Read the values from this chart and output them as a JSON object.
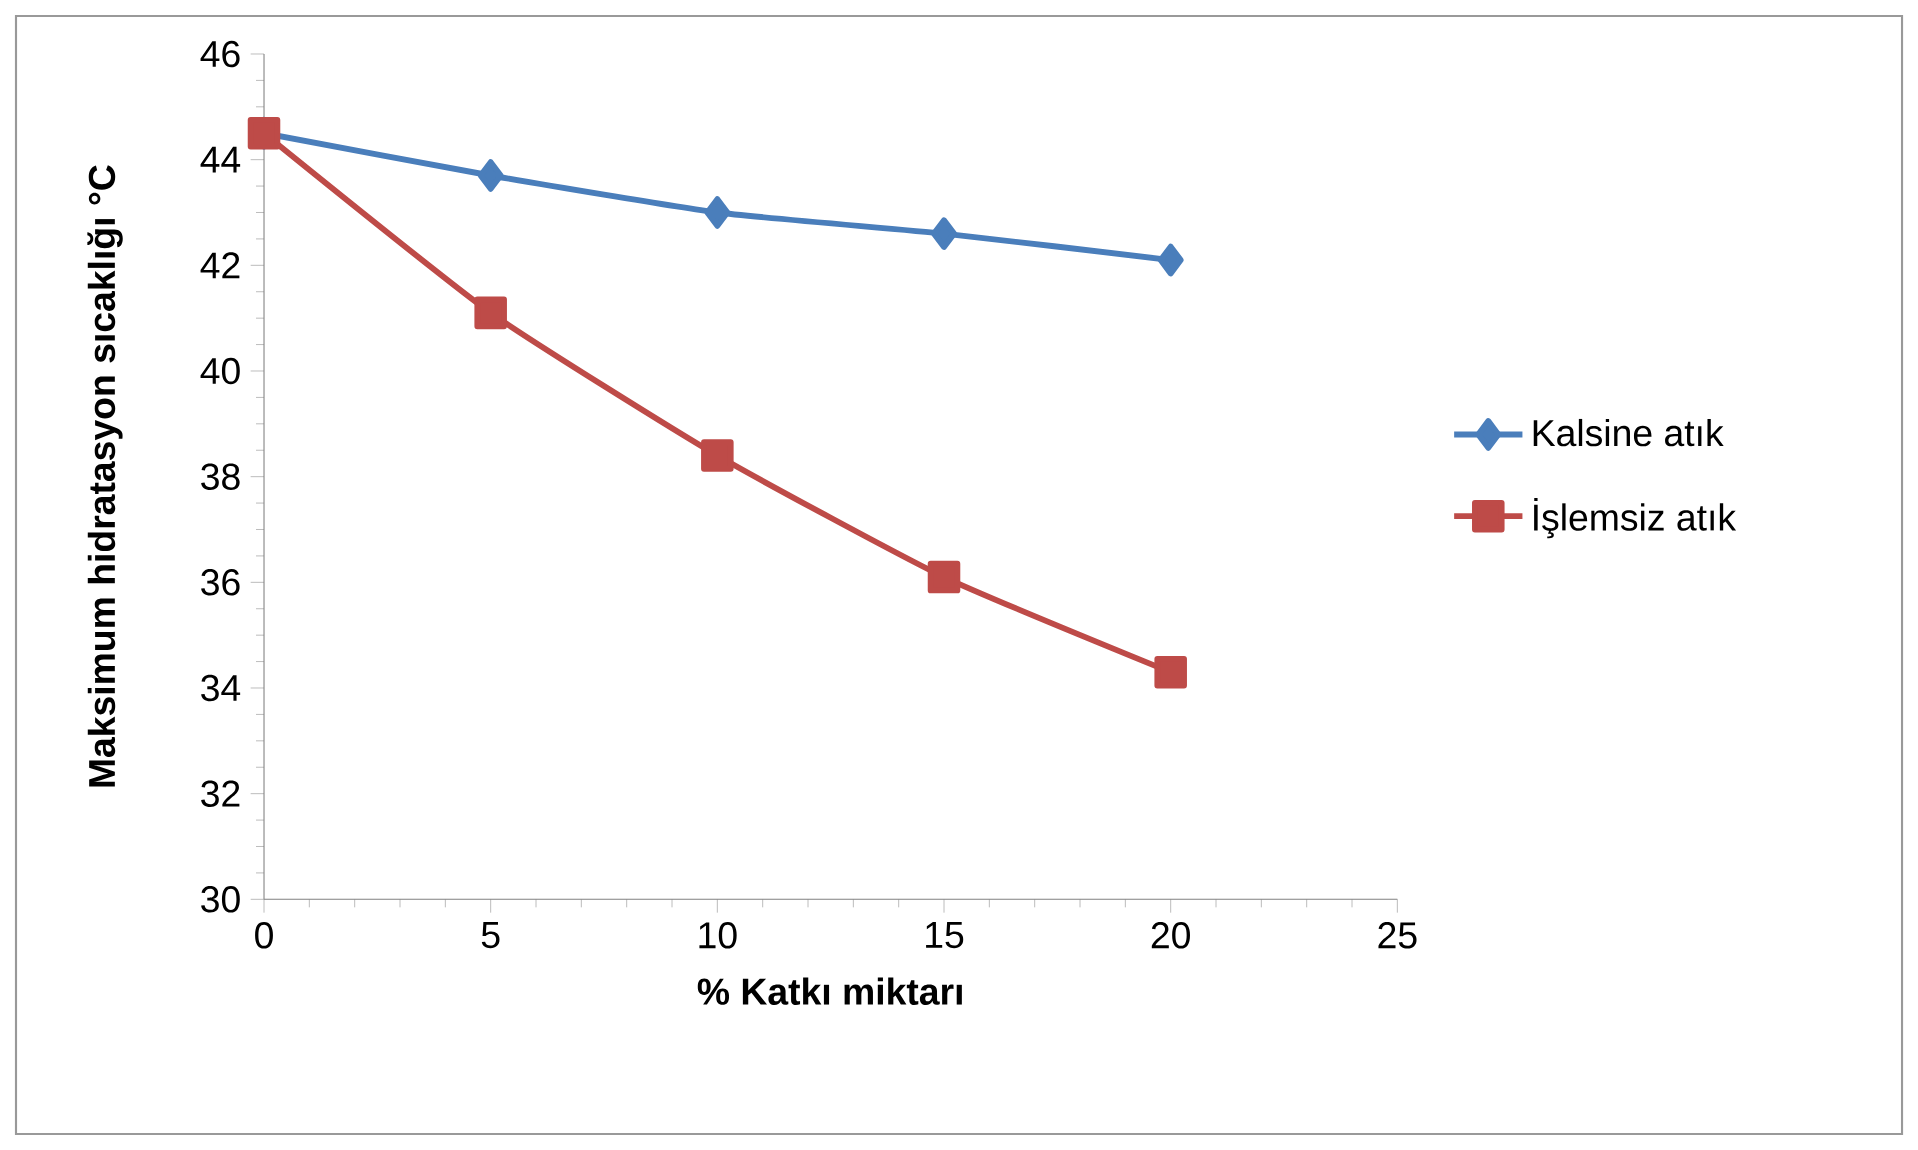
{
  "chart_data": {
    "type": "line",
    "xlabel": "% Katkı miktarı",
    "ylabel": "Maksimum hidratasyon sıcaklığı °C",
    "x": [
      0,
      5,
      10,
      15,
      20
    ],
    "series": [
      {
        "name": "Kalsine atık",
        "color": "#4a7ebb",
        "marker": "diamond",
        "values": [
          44.5,
          43.7,
          43.0,
          42.6,
          42.1
        ]
      },
      {
        "name": "İşlemsiz atık",
        "color": "#be4b48",
        "marker": "square",
        "values": [
          44.5,
          41.1,
          38.4,
          36.1,
          34.3
        ]
      }
    ],
    "xlim": [
      0,
      25
    ],
    "xticks": [
      0,
      5,
      10,
      15,
      20,
      25
    ],
    "ylim": [
      30,
      46
    ],
    "yticks": [
      30,
      32,
      34,
      36,
      38,
      40,
      42,
      44,
      46
    ],
    "legend": "right",
    "line_style": "solid"
  }
}
